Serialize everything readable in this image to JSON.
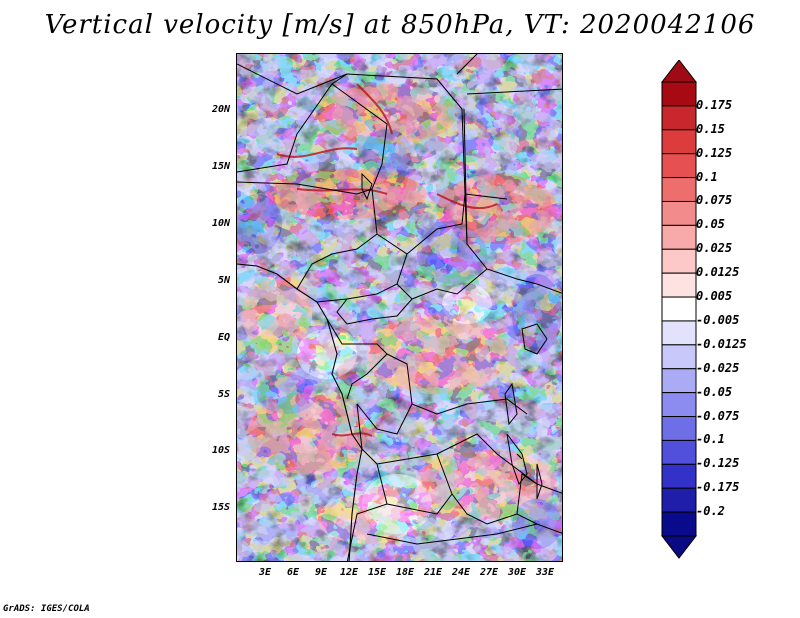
{
  "title": "Vertical velocity [m/s] at 850hPa, VT: 2020042106",
  "credit": "GrADS: IGES/COLA",
  "map": {
    "region": "Central Africa",
    "field": "Vertical velocity",
    "units": "m/s",
    "level": "850hPa",
    "valid_time": "2020042106",
    "lat_range": [
      -20,
      25
    ],
    "lon_range": [
      0,
      35
    ],
    "lat_ticks": [
      {
        "value": 20,
        "label": "20N"
      },
      {
        "value": 15,
        "label": "15N"
      },
      {
        "value": 10,
        "label": "10N"
      },
      {
        "value": 5,
        "label": "5N"
      },
      {
        "value": 0,
        "label": "EQ"
      },
      {
        "value": -5,
        "label": "5S"
      },
      {
        "value": -10,
        "label": "10S"
      },
      {
        "value": -15,
        "label": "15S"
      }
    ],
    "lon_ticks": [
      {
        "value": 3,
        "label": "3E"
      },
      {
        "value": 6,
        "label": "6E"
      },
      {
        "value": 9,
        "label": "9E"
      },
      {
        "value": 12,
        "label": "12E"
      },
      {
        "value": 15,
        "label": "15E"
      },
      {
        "value": 18,
        "label": "18E"
      },
      {
        "value": 21,
        "label": "21E"
      },
      {
        "value": 24,
        "label": "24E"
      },
      {
        "value": 27,
        "label": "27E"
      },
      {
        "value": 30,
        "label": "30E"
      },
      {
        "value": 33,
        "label": "33E"
      }
    ]
  },
  "colorbar": {
    "levels": [
      "0.175",
      "0.15",
      "0.125",
      "0.1",
      "0.075",
      "0.05",
      "0.025",
      "0.0125",
      "0.005",
      "-0.005",
      "-0.0125",
      "-0.025",
      "-0.05",
      "-0.075",
      "-0.1",
      "-0.125",
      "-0.175",
      "-0.2"
    ],
    "colors": [
      "#a80a14",
      "#c8282d",
      "#dc3c3c",
      "#e65050",
      "#ee6e6e",
      "#f28c8c",
      "#f8aaaa",
      "#fcc8c8",
      "#fde2e2",
      "#ffffff",
      "#e2e2fc",
      "#c8c8fa",
      "#aaaaf5",
      "#8c8cf0",
      "#6e6ee6",
      "#5050dc",
      "#3232c8",
      "#1e1eaa",
      "#0a0a8c"
    ],
    "top_color": "#a00a14",
    "bottom_color": "#0a0a82"
  }
}
